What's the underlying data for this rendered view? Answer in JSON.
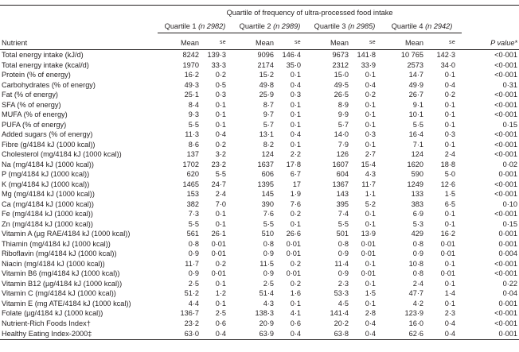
{
  "header": {
    "quartile_title": "Quartile of frequency of ultra-processed food intake",
    "quartiles": [
      {
        "label": "Quartile 1",
        "n": "(n 2982)"
      },
      {
        "label": "Quartile 2",
        "n": "(n 2989)"
      },
      {
        "label": "Quartile 3",
        "n": "(n 2985)"
      },
      {
        "label": "Quartile 4",
        "n": "(n 2942)"
      }
    ],
    "nutrient_label": "Nutrient",
    "mean_label": "Mean",
    "se_label": "se",
    "p_label": "P value*"
  },
  "rows": [
    [
      "Total energy intake (kJ/d)",
      "8242",
      "139·3",
      "9096",
      "146·4",
      "9673",
      "141·8",
      "10 765",
      "142·3",
      "<0·001"
    ],
    [
      "Total energy intake (kcal/d)",
      "1970",
      "33·3",
      "2174",
      "35·0",
      "2312",
      "33·9",
      "2573",
      "34·0",
      "<0·001"
    ],
    [
      "Protein (% of energy)",
      "16·2",
      "0·2",
      "15·2",
      "0·1",
      "15·0",
      "0·1",
      "14·7",
      "0·1",
      "<0·001"
    ],
    [
      "Carbohydrates (% of energy)",
      "49·3",
      "0·5",
      "49·8",
      "0·4",
      "49·5",
      "0·4",
      "49·9",
      "0·4",
      "0·31"
    ],
    [
      "Fat (% of energy)",
      "25·1",
      "0·3",
      "25·9",
      "0·3",
      "26·5",
      "0·2",
      "26·7",
      "0·2",
      "<0·001"
    ],
    [
      "SFA (% of energy)",
      "8·4",
      "0·1",
      "8·7",
      "0·1",
      "8·9",
      "0·1",
      "9·1",
      "0·1",
      "<0·001"
    ],
    [
      "MUFA (% of energy)",
      "9·3",
      "0·1",
      "9·7",
      "0·1",
      "9·9",
      "0·1",
      "10·1",
      "0·1",
      "<0·001"
    ],
    [
      "PUFA (% of energy)",
      "5·5",
      "0·1",
      "5·7",
      "0·1",
      "5·7",
      "0·1",
      "5·5",
      "0·1",
      "0·15"
    ],
    [
      "Added sugars (% of energy)",
      "11·3",
      "0·4",
      "13·1",
      "0·4",
      "14·0",
      "0·3",
      "16·4",
      "0·3",
      "<0·001"
    ],
    [
      "Fibre (g/4184 kJ (1000 kcal))",
      "8·6",
      "0·2",
      "8·2",
      "0·1",
      "7·9",
      "0·1",
      "7·1",
      "0·1",
      "<0·001"
    ],
    [
      "Cholesterol (mg/4184 kJ (1000 kcal))",
      "137",
      "3·2",
      "124",
      "2·2",
      "126",
      "2·7",
      "124",
      "2·4",
      "<0·001"
    ],
    [
      "Na (mg/4184 kJ (1000 kcal))",
      "1702",
      "23·2",
      "1637",
      "17·8",
      "1607",
      "15·4",
      "1620",
      "18·8",
      "0·02"
    ],
    [
      "P (mg/4184 kJ (1000 kcal))",
      "620",
      "5·5",
      "606",
      "6·7",
      "604",
      "4·3",
      "590",
      "5·0",
      "0·001"
    ],
    [
      "K (mg/4184 kJ (1000 kcal))",
      "1465",
      "24·7",
      "1395",
      "17",
      "1367",
      "11·7",
      "1249",
      "12·6",
      "<0·001"
    ],
    [
      "Mg (mg/4184 kJ (1000 kcal))",
      "153",
      "2·4",
      "145",
      "1·9",
      "143",
      "1·1",
      "133",
      "1·5",
      "<0·001"
    ],
    [
      "Ca (mg/4184 kJ (1000 kcal))",
      "382",
      "7·0",
      "390",
      "7·6",
      "395",
      "5·2",
      "383",
      "6·5",
      "0·10"
    ],
    [
      "Fe (mg/4184 kJ (1000 kcal))",
      "7·3",
      "0·1",
      "7·6",
      "0·2",
      "7·4",
      "0·1",
      "6·9",
      "0·1",
      "<0·001"
    ],
    [
      "Zn (mg/4184 kJ (1000 kcal))",
      "5·5",
      "0·1",
      "5·5",
      "0·1",
      "5·5",
      "0·1",
      "5·3",
      "0·1",
      "0·15"
    ],
    [
      "Vitamin A (µg RAE/4184 kJ (1000 kcal))",
      "561",
      "26·1",
      "510",
      "26·6",
      "501",
      "13·9",
      "429",
      "16·2",
      "0·001"
    ],
    [
      "Thiamin (mg/4184 kJ (1000 kcal))",
      "0·8",
      "0·01",
      "0·8",
      "0·01",
      "0·8",
      "0·01",
      "0·8",
      "0·01",
      "0·001"
    ],
    [
      "Riboflavin (mg/4184 kJ (1000 kcal))",
      "0·9",
      "0·01",
      "0·9",
      "0·01",
      "0·9",
      "0·01",
      "0·9",
      "0·01",
      "0·004"
    ],
    [
      "Niacin (mg/4184 kJ (1000 kcal))",
      "11·7",
      "0·2",
      "11·5",
      "0·2",
      "11·4",
      "0·1",
      "10·8",
      "0·1",
      "<0·001"
    ],
    [
      "Vitamin B6 (mg/4184 kJ (1000 kcal))",
      "0·9",
      "0·01",
      "0·9",
      "0·01",
      "0·9",
      "0·01",
      "0·8",
      "0·01",
      "<0·001"
    ],
    [
      "Vitamin B12 (µg/4184 kJ (1000 kcal))",
      "2·5",
      "0·1",
      "2·5",
      "0·2",
      "2·3",
      "0·1",
      "2·4",
      "0·1",
      "0·22"
    ],
    [
      "Vitamin C (mg/4184 kJ (1000 kcal))",
      "51·2",
      "1·2",
      "51·4",
      "1·6",
      "53·3",
      "1·5",
      "47·7",
      "1·4",
      "0·04"
    ],
    [
      "Vitamin E (mg ATE/4184 kJ (1000 kcal))",
      "4·4",
      "0·1",
      "4·3",
      "0·1",
      "4·5",
      "0·1",
      "4·2",
      "0·1",
      "0·001"
    ],
    [
      "Folate (µg/4184 kJ (1000 kcal))",
      "136·7",
      "2·5",
      "138·3",
      "4·1",
      "141·4",
      "2·8",
      "123·9",
      "2·3",
      "<0·001"
    ],
    [
      "Nutrient-Rich Foods Index†",
      "23·2",
      "0·6",
      "20·9",
      "0·6",
      "20·2",
      "0·4",
      "16·0",
      "0·4",
      "<0·001"
    ],
    [
      "Healthy Eating Index-2000‡",
      "63·0",
      "0·4",
      "63·9",
      "0·4",
      "63·8",
      "0·4",
      "62·6",
      "0·4",
      "0·001"
    ]
  ]
}
